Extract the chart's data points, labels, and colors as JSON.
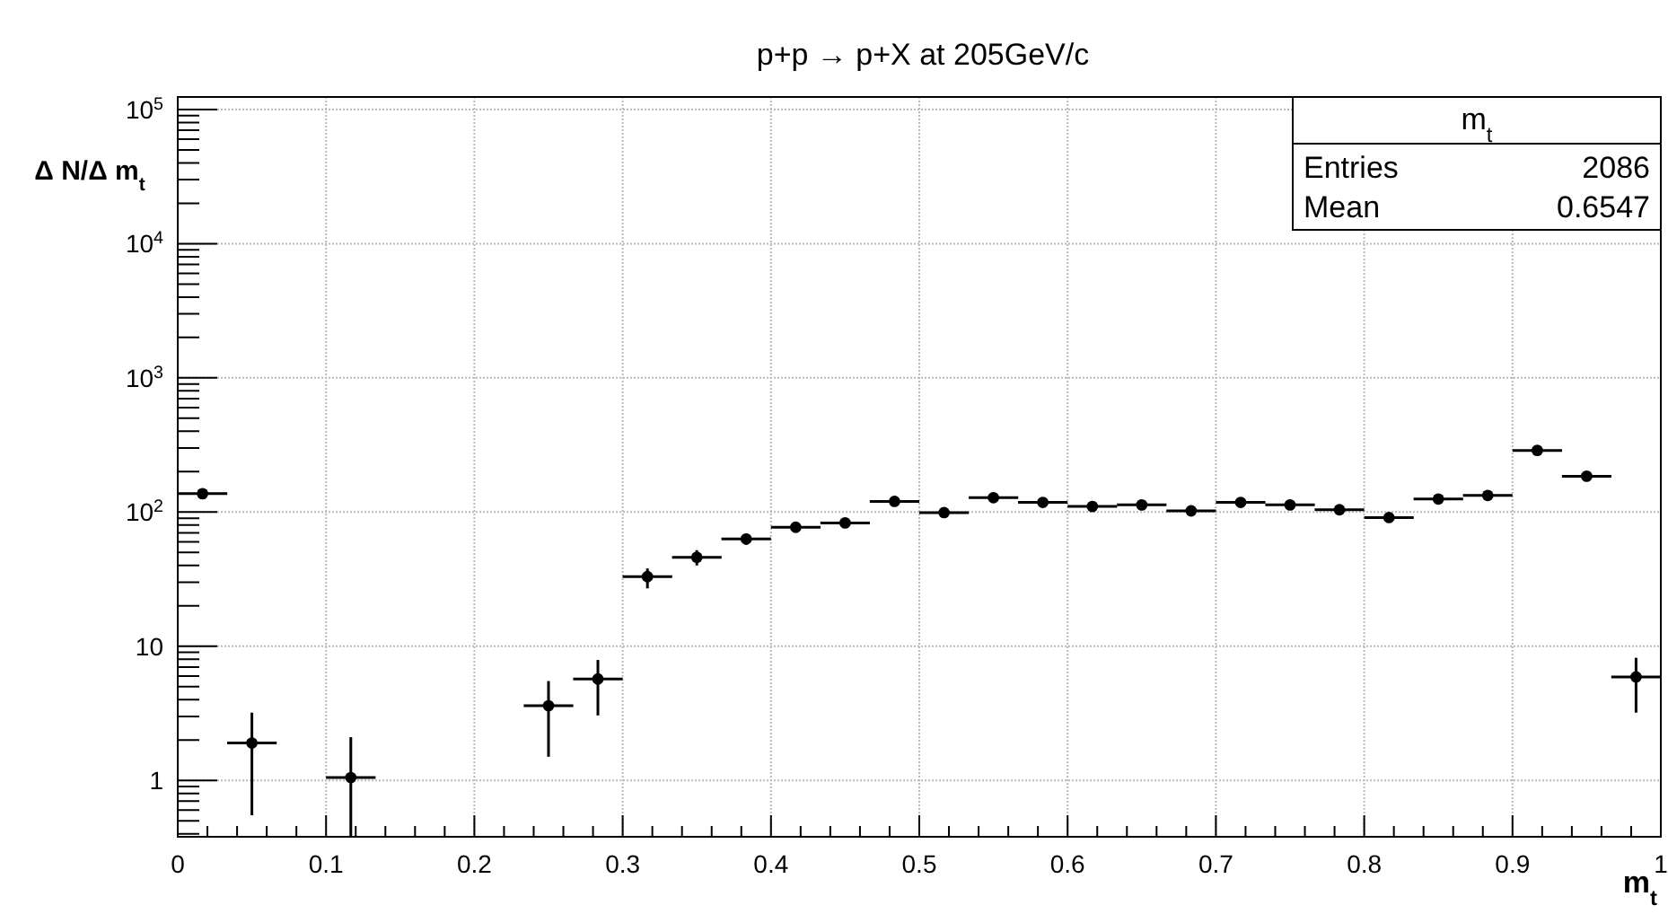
{
  "chart_data": {
    "type": "scatter",
    "title": "p+p → p+X at 205GeV/c",
    "xlabel": "m$_{t}$",
    "ylabel": "Δ N/Δ m$_{t}$",
    "x": [
      0.0167,
      0.05,
      0.1167,
      0.25,
      0.2833,
      0.3167,
      0.35,
      0.3833,
      0.4167,
      0.45,
      0.4833,
      0.5167,
      0.55,
      0.5833,
      0.6167,
      0.65,
      0.6833,
      0.7167,
      0.75,
      0.7833,
      0.8167,
      0.85,
      0.8833,
      0.9167,
      0.95,
      0.9833
    ],
    "series": [
      {
        "color": "#000000",
        "values": [
          137,
          1.9,
          1.05,
          3.6,
          5.7,
          33,
          46,
          63,
          77,
          83,
          120,
          99,
          128,
          118,
          110,
          113,
          102,
          118,
          113,
          104,
          91,
          125,
          133,
          288,
          185,
          5.9
        ],
        "errors": [
          null,
          [
            0.55,
            3.2
          ],
          [
            0.38,
            2.1
          ],
          [
            1.5,
            5.5
          ],
          [
            3.05,
            7.9
          ],
          [
            27,
            38
          ],
          [
            40,
            52
          ],
          [
            57,
            69
          ],
          [
            71,
            84
          ],
          [
            76,
            90
          ],
          null,
          null,
          null,
          null,
          null,
          null,
          null,
          null,
          null,
          null,
          null,
          null,
          null,
          null,
          null,
          [
            3.2,
            8.2
          ]
        ],
        "xerrors": [
          0.0167,
          0.0167,
          0.0167,
          0.0167,
          0.0167,
          0.0167,
          0.0167,
          0.0167,
          0.0167,
          0.0167,
          0.0167,
          0.0167,
          0.0167,
          0.0167,
          0.0167,
          0.0167,
          0.0167,
          0.0167,
          0.0167,
          0.0167,
          0.0167,
          0.0167,
          0.0167,
          0.0167,
          0.0167,
          0.0167
        ]
      }
    ],
    "xlim": [
      0,
      1
    ],
    "xticks": [
      0,
      0.1,
      0.2,
      0.3,
      0.4,
      0.5,
      0.6,
      0.7,
      0.8,
      0.9,
      1
    ],
    "ylim": [
      0.38,
      124000
    ],
    "yticks": [
      1,
      10,
      {
        "value": 100,
        "label": "10$^{2}$"
      },
      {
        "value": 1000,
        "label": "10$^{3}$"
      },
      {
        "value": 10000,
        "label": "10$^{4}$"
      },
      {
        "value": 100000,
        "label": "10$^{5}$"
      }
    ],
    "log": "y",
    "grid": true,
    "marker": "circle",
    "annotations": [
      "m$_{t}$",
      "Entries",
      "2086",
      "Mean",
      "0.6547"
    ]
  }
}
